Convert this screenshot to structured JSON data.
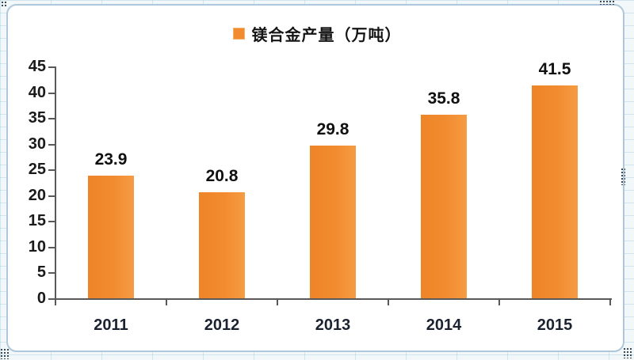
{
  "page": {
    "background": "#F2F8FA"
  },
  "frame": {
    "border_color": "#AFC7DB",
    "fill": "#FFFFFF"
  },
  "legend": {
    "label": "镁合金产量（万吨）",
    "marker_color": "#F28B30"
  },
  "chart_data": {
    "type": "bar",
    "title": "",
    "series_name": "镁合金产量（万吨）",
    "categories": [
      "2011",
      "2012",
      "2013",
      "2014",
      "2015"
    ],
    "values": [
      23.9,
      20.8,
      29.8,
      35.8,
      41.5
    ],
    "data_labels": [
      "23.9",
      "20.8",
      "29.8",
      "35.8",
      "41.5"
    ],
    "xlabel": "",
    "ylabel": "",
    "ylim": [
      0,
      45
    ],
    "ytick_step": 5,
    "yticks": [
      0,
      5,
      10,
      15,
      20,
      25,
      30,
      35,
      40,
      45
    ],
    "grid": false,
    "legend_position": "top-center",
    "bar_color": "#F28B30",
    "axis_color": "#595959",
    "label_color": "#1A1A1A"
  }
}
